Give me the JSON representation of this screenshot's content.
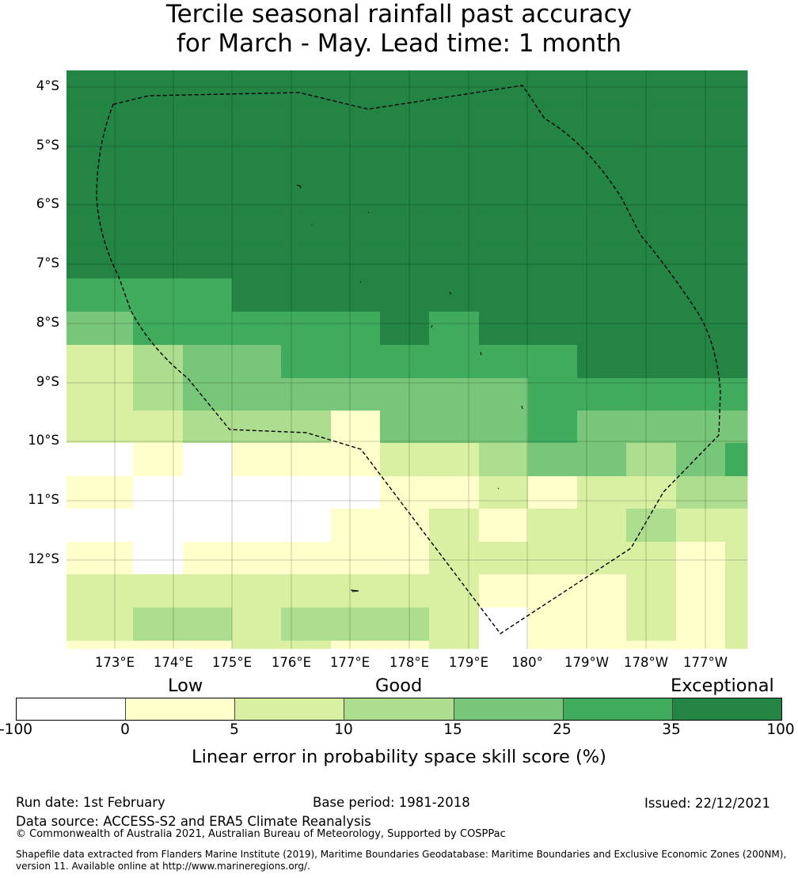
{
  "title": {
    "line1": "Tercile seasonal rainfall past accuracy",
    "line2": "for March - May. Lead time: 1 month"
  },
  "map": {
    "lat_labels": [
      "4°S",
      "5°S",
      "6°S",
      "7°S",
      "8°S",
      "9°S",
      "10°S",
      "11°S",
      "12°S"
    ],
    "lon_labels": [
      "173°E",
      "174°E",
      "175°E",
      "176°E",
      "177°E",
      "178°E",
      "179°E",
      "180°",
      "179°W",
      "178°W",
      "177°W"
    ],
    "grid_columns": 14,
    "grid_rows": 18,
    "cells_legend_index": [
      [
        6,
        6,
        6,
        6,
        6,
        6,
        6,
        6,
        6,
        6,
        6,
        6,
        6,
        6
      ],
      [
        6,
        6,
        6,
        6,
        6,
        6,
        6,
        6,
        6,
        6,
        6,
        6,
        6,
        6
      ],
      [
        6,
        6,
        6,
        6,
        6,
        6,
        6,
        6,
        6,
        6,
        6,
        6,
        6,
        6
      ],
      [
        6,
        6,
        6,
        6,
        6,
        6,
        6,
        6,
        6,
        6,
        6,
        6,
        6,
        6
      ],
      [
        6,
        6,
        6,
        6,
        6,
        6,
        6,
        6,
        6,
        6,
        6,
        6,
        6,
        6
      ],
      [
        6,
        6,
        6,
        6,
        6,
        6,
        6,
        6,
        6,
        6,
        6,
        6,
        6,
        6
      ],
      [
        5,
        5,
        5,
        6,
        6,
        6,
        6,
        6,
        6,
        6,
        6,
        6,
        6,
        6
      ],
      [
        4,
        5,
        5,
        5,
        5,
        5,
        6,
        5,
        6,
        6,
        6,
        6,
        6,
        6
      ],
      [
        2,
        3,
        4,
        4,
        5,
        5,
        5,
        5,
        5,
        5,
        6,
        6,
        6,
        6
      ],
      [
        2,
        3,
        4,
        4,
        4,
        4,
        4,
        4,
        4,
        5,
        5,
        5,
        5,
        5
      ],
      [
        2,
        2,
        3,
        3,
        3,
        1,
        4,
        4,
        4,
        5,
        4,
        4,
        4,
        4
      ],
      [
        0,
        1,
        0,
        1,
        1,
        1,
        2,
        2,
        3,
        4,
        4,
        3,
        4,
        5
      ],
      [
        1,
        0,
        0,
        0,
        0,
        0,
        1,
        1,
        2,
        1,
        2,
        2,
        3,
        3
      ],
      [
        0,
        0,
        0,
        0,
        0,
        1,
        1,
        2,
        1,
        2,
        2,
        3,
        2,
        2
      ],
      [
        1,
        0,
        1,
        1,
        1,
        1,
        1,
        2,
        2,
        2,
        2,
        2,
        1,
        2
      ],
      [
        2,
        2,
        2,
        2,
        2,
        2,
        2,
        2,
        1,
        1,
        1,
        2,
        1,
        2
      ],
      [
        2,
        3,
        3,
        2,
        3,
        3,
        3,
        2,
        0,
        1,
        1,
        2,
        1,
        2
      ],
      [
        1,
        1,
        1,
        2,
        2,
        1,
        1,
        2,
        0,
        1,
        1,
        1,
        1,
        2
      ]
    ]
  },
  "legend": {
    "categories": [
      "Low",
      "Good",
      "Exceptional"
    ],
    "ticks": [
      "-100",
      "0",
      "5",
      "10",
      "15",
      "25",
      "35",
      "100"
    ],
    "colors": [
      "#ffffff",
      "#ffffcc",
      "#d9f0a3",
      "#addd8e",
      "#78c679",
      "#41ab5d",
      "#238443"
    ],
    "label": "Linear error in probability space skill score (%)"
  },
  "footer": {
    "run_date": "Run date: 1st February",
    "base_period": "Base period: 1981-2018",
    "issued": "Issued: 22/12/2021",
    "data_source": "Data source: ACCESS-S2 and ERA5 Climate Reanalysis",
    "copyright": "© Commonwealth of Australia 2021, Australian Bureau of Meteorology, Supported by COSPPac",
    "shapefile_line1": "Shapefile data extracted from Flanders Marine Institute (2019), Maritime Boundaries Geodatabase: Maritime Boundaries and Exclusive Economic Zones (200NM),",
    "shapefile_line2": "version 11. Available online at http://www.marineregions.org/."
  }
}
